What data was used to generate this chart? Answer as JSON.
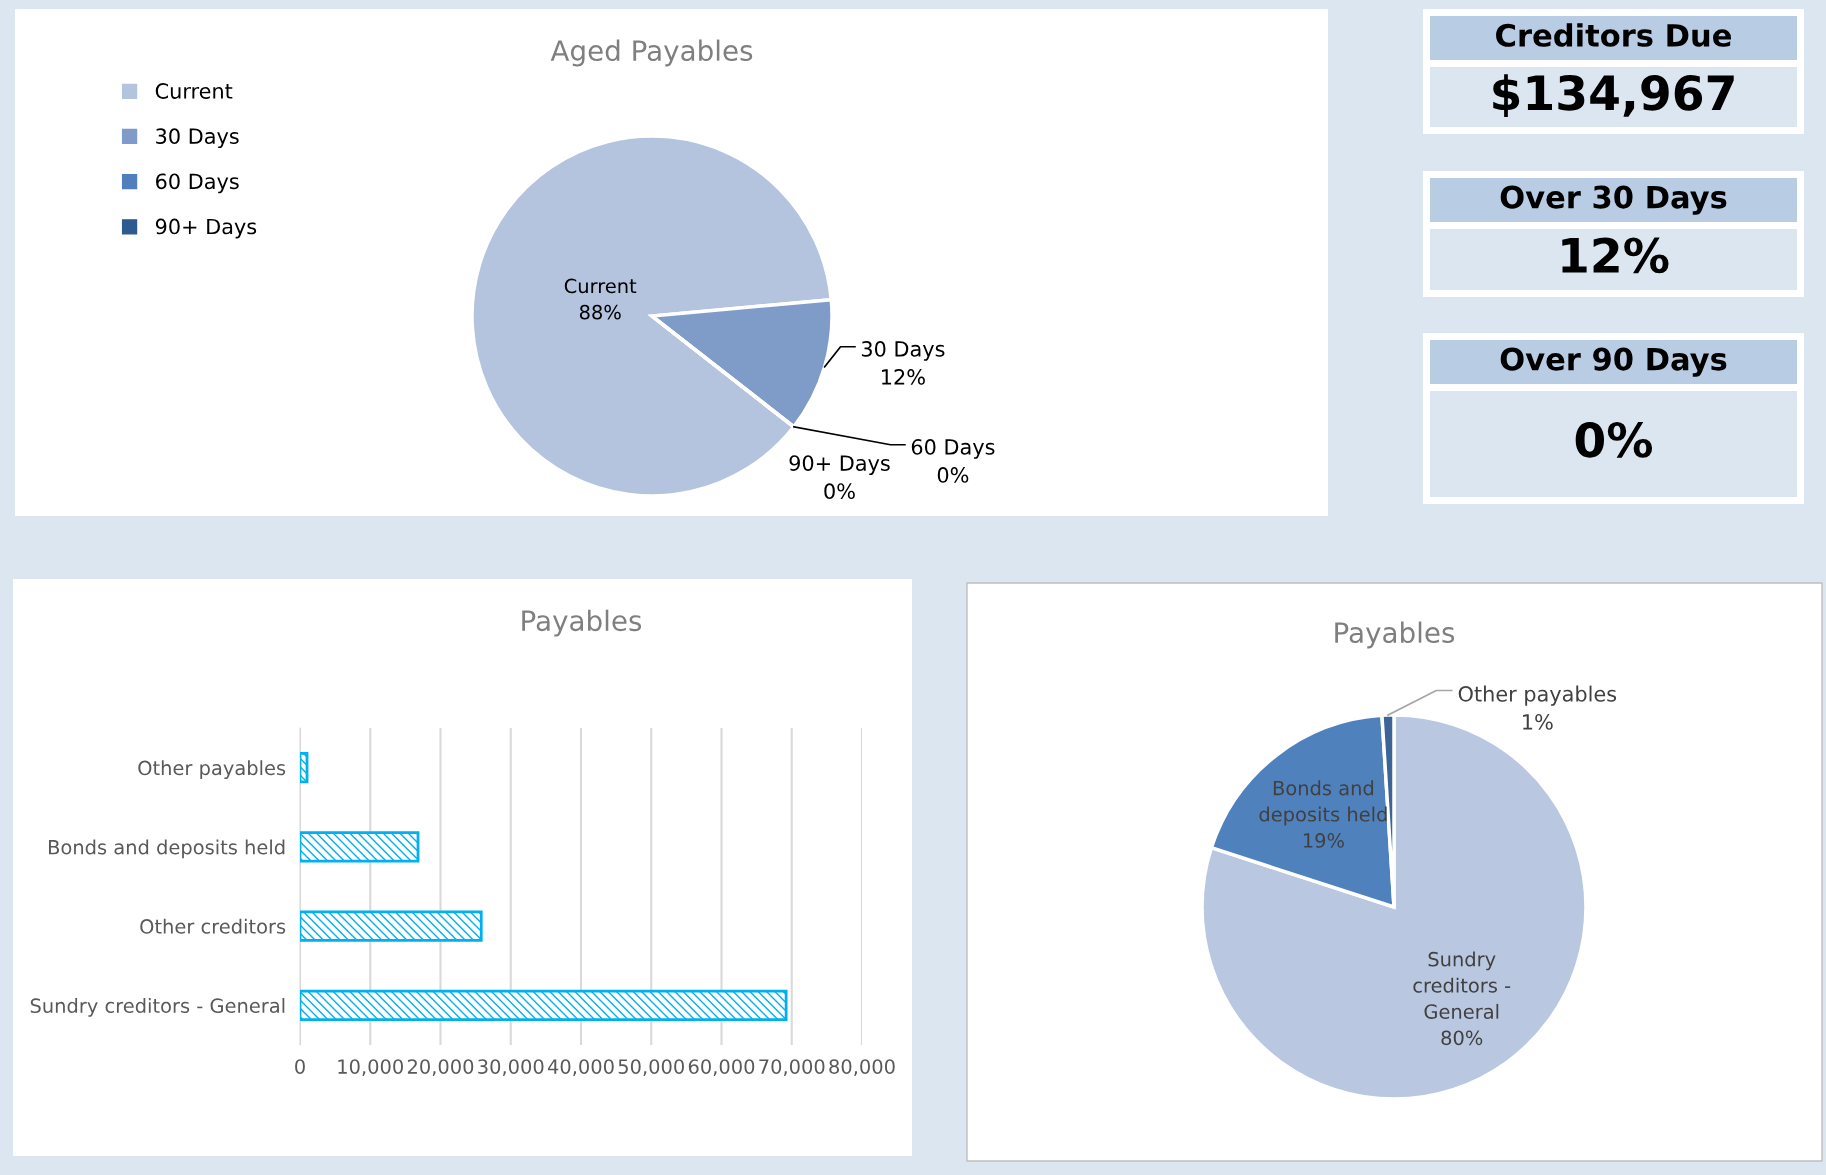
{
  "chart_data": [
    {
      "type": "pie",
      "title": "Aged Payables",
      "categories": [
        "Current",
        "30 Days",
        "60 Days",
        "90+ Days"
      ],
      "values": [
        88,
        12,
        0,
        0
      ],
      "value_labels": [
        "88%",
        "12%",
        "0%",
        "0%"
      ],
      "colors": [
        "#b4c3de",
        "#7f9cc8",
        "#4f7fbd",
        "#2f5a8f"
      ],
      "legend": "top left"
    },
    {
      "type": "other",
      "categories": [
        "Creditors Due",
        "Over 30 Days",
        "Over 90 Days"
      ],
      "value_labels": [
        "$134,967",
        "12%",
        "0%"
      ],
      "color": "#b8cce4"
    },
    {
      "type": "bar",
      "orientation": "horizontal",
      "title": "Payables",
      "categories": [
        "Other payables",
        "Bonds and deposits held",
        "Other creditors",
        "Sundry creditors - General"
      ],
      "values": [
        1000,
        16800,
        25800,
        69200
      ],
      "color": "#00b0f0",
      "xlim": [
        0,
        80000
      ],
      "xticks": [
        0,
        {
          "value": 10000,
          "label": "10,000"
        },
        {
          "value": 20000,
          "label": "20,000"
        },
        {
          "value": 30000,
          "label": "30,000"
        },
        {
          "value": 40000,
          "label": "40,000"
        },
        {
          "value": 50000,
          "label": "50,000"
        },
        {
          "value": 60000,
          "label": "60,000"
        },
        {
          "value": 70000,
          "label": "70,000"
        },
        {
          "value": 80000,
          "label": "80,000"
        }
      ],
      "grid": "x"
    },
    {
      "type": "pie",
      "title": "Payables",
      "categories": [
        "Sundry creditors - General",
        "Bonds and deposits held",
        "Other payables"
      ],
      "values": [
        80,
        19,
        1
      ],
      "value_labels": [
        "80%",
        "19%",
        "1%"
      ],
      "colors": [
        "#bac7e0",
        "#4f81bd",
        "#3b6596"
      ]
    }
  ]
}
